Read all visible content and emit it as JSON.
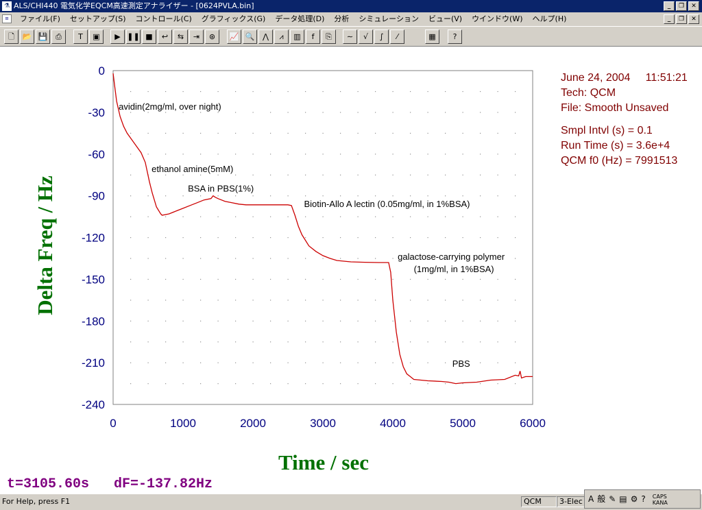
{
  "window": {
    "title": "ALS/CHI440 電気化学EQCM高速測定アナライザー - [0624PVLA.bin]",
    "app_icon": "app-icon"
  },
  "menu": {
    "items": [
      "ファイル(F)",
      "セットアップ(S)",
      "コントロール(C)",
      "グラフィックス(G)",
      "データ処理(D)",
      "分析",
      "シミュレーション",
      "ビュー(V)",
      "ウインドウ(W)",
      "ヘルプ(H)"
    ]
  },
  "toolbar": {
    "buttons": [
      "new-icon",
      "open-icon",
      "save-icon",
      "print-icon",
      "text-icon",
      "frame-icon",
      "run-icon",
      "pause-icon",
      "stop-icon",
      "reverse-icon",
      "repeat-icon",
      "step-icon",
      "cell-icon",
      "graph-icon",
      "zoom-icon",
      "peak-icon",
      "overlay-icon",
      "color-icon",
      "font-icon",
      "copy-icon",
      "smooth-icon",
      "derivative-icon",
      "integrate-icon",
      "marker-icon",
      "data-list-icon",
      "help-cursor-icon"
    ]
  },
  "info": {
    "date_time": "June 24, 2004     11:51:21",
    "tech": "Tech: QCM",
    "file": "File: Smooth Unsaved",
    "smpl": "Smpl Intvl (s) = 0.1",
    "runtime": "Run Time (s) = 3.6e+4",
    "f0": "QCM f0 (Hz) = 7991513"
  },
  "readout": "t=3105.60s   dF=-137.82Hz",
  "status": {
    "help": "For Help, press F1",
    "mode": "QCM",
    "electrode": "3-Elec"
  },
  "ime": {
    "caps": "CAPS",
    "kana": "KANA",
    "label": "般"
  },
  "chart_data": {
    "type": "line",
    "xlabel": "Time / sec",
    "ylabel": "Delta Freq / Hz",
    "xlim": [
      0,
      6000
    ],
    "ylim": [
      -240,
      0
    ],
    "xticks": [
      0,
      1000,
      2000,
      3000,
      4000,
      5000,
      6000
    ],
    "yticks": [
      0,
      -30,
      -60,
      -90,
      -120,
      -150,
      -180,
      -210,
      -240
    ],
    "grid": "dotted",
    "line_color": "#cc0000",
    "series": [
      {
        "x": [
          0,
          20,
          50,
          100,
          150,
          200,
          300,
          400,
          460,
          520,
          560,
          620,
          680,
          700,
          800,
          900,
          1000,
          1100,
          1200,
          1300,
          1400,
          1430,
          1460,
          1500,
          1600,
          1700,
          1800,
          1900,
          2000,
          2200,
          2400,
          2500,
          2550,
          2600,
          2650,
          2700,
          2800,
          2900,
          3000,
          3100,
          3200,
          3400,
          3600,
          3800,
          3940,
          3970,
          4000,
          4050,
          4100,
          4150,
          4200,
          4250,
          4300,
          4400,
          4500,
          4700,
          4800,
          4900,
          5000,
          5200,
          5400,
          5600,
          5750,
          5800,
          5820,
          5840,
          5900,
          6000
        ],
        "y": [
          -2,
          -10,
          -22,
          -33,
          -40,
          -45,
          -52,
          -59,
          -66,
          -80,
          -88,
          -98,
          -103,
          -104,
          -103,
          -101,
          -99,
          -97,
          -95,
          -93,
          -92,
          -90,
          -91,
          -92,
          -94,
          -95,
          -96,
          -96.5,
          -96.5,
          -96.5,
          -96.5,
          -96.5,
          -97,
          -104,
          -112,
          -118,
          -126,
          -130,
          -133,
          -135,
          -136.5,
          -137.5,
          -137.8,
          -138,
          -138,
          -145,
          -165,
          -188,
          -204,
          -213,
          -218,
          -220,
          -222,
          -222.5,
          -223,
          -223.5,
          -224,
          -225,
          -224.5,
          -224,
          -222.5,
          -222,
          -219,
          -219.5,
          -216,
          -221,
          -220,
          -220
        ]
      }
    ],
    "annotations": [
      {
        "text": "avidin(2mg/ml, over night)",
        "x": 80,
        "y": -28
      },
      {
        "text": "ethanol amine(5mM)",
        "x": 550,
        "y": -73
      },
      {
        "text": "BSA in PBS(1%)",
        "x": 1070,
        "y": -87
      },
      {
        "text": "Biotin-Allo A lectin (0.05mg/ml, in 1%BSA)",
        "x": 2730,
        "y": -98
      },
      {
        "text": "galactose-carrying polymer",
        "x": 4070,
        "y": -136
      },
      {
        "text": "(1mg/ml, in 1%BSA)",
        "x": 4300,
        "y": -145
      },
      {
        "text": "PBS",
        "x": 4850,
        "y": -213
      }
    ]
  }
}
